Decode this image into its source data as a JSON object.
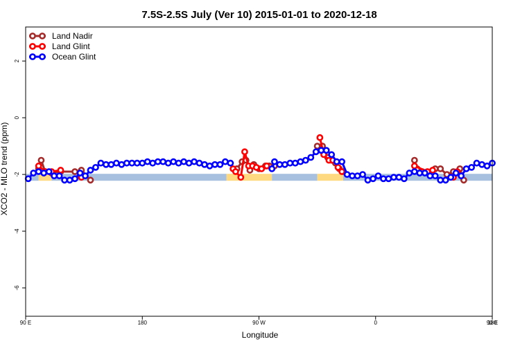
{
  "chart_data": {
    "type": "line",
    "title": "7.5S-2.5S July (Ver 10)   2015-01-01 to 2020-12-18",
    "xlabel": "Longitude",
    "ylabel": "XCO2 - MLO trend (ppm)",
    "xlim": [
      0,
      360
    ],
    "ylim": [
      -7,
      3.2
    ],
    "x_ticks": [
      {
        "value": 0,
        "label": "90 E"
      },
      {
        "value": 90,
        "label": "180"
      },
      {
        "value": 180,
        "label": "90 W"
      },
      {
        "value": 270,
        "label": "0"
      },
      {
        "value": 360,
        "label": "90 E"
      }
    ],
    "x_ticks_right": [
      {
        "value": 360,
        "label": "180"
      }
    ],
    "y_ticks": [
      {
        "value": 2,
        "label": "2"
      },
      {
        "value": 0,
        "label": "0"
      },
      {
        "value": -2,
        "label": "-2"
      },
      {
        "value": -4,
        "label": "-4"
      },
      {
        "value": -6,
        "label": "-6"
      }
    ],
    "legend_position": "top-left",
    "colors": {
      "land_nadir": "#a52a2a",
      "land_glint": "#ff0000",
      "ocean_glint": "#0000ff",
      "ocean_band": "#a8c0e0",
      "land_band": "#ffd980"
    },
    "surface_band": {
      "y_value": -2.1,
      "segments": [
        {
          "type": "ocean",
          "x0": 0,
          "x1": 10
        },
        {
          "type": "land",
          "x0": 10,
          "x1": 20
        },
        {
          "type": "ocean",
          "x0": 20,
          "x1": 155
        },
        {
          "type": "land",
          "x0": 155,
          "x1": 190
        },
        {
          "type": "ocean",
          "x0": 190,
          "x1": 225
        },
        {
          "type": "land",
          "x0": 225,
          "x1": 245
        },
        {
          "type": "ocean",
          "x0": 245,
          "x1": 360
        }
      ]
    },
    "series": [
      {
        "name": "Land Nadir",
        "key": "land_nadir",
        "points": [
          [
            10,
            -1.8
          ],
          [
            12,
            -1.5
          ],
          [
            15,
            -1.9
          ],
          [
            20,
            -1.95
          ],
          [
            27,
            -1.9
          ],
          [
            38,
            -1.9
          ],
          [
            43,
            -1.85
          ],
          [
            50,
            -2.2
          ],
          [
            163,
            -1.8
          ],
          [
            167,
            -1.55
          ],
          [
            170,
            -1.5
          ],
          [
            173,
            -1.85
          ],
          [
            176,
            -1.65
          ],
          [
            180,
            -1.8
          ],
          [
            185,
            -1.7
          ],
          [
            188,
            -1.7
          ],
          [
            192,
            -1.7
          ],
          [
            225,
            -1.0
          ],
          [
            229,
            -1.0
          ],
          [
            233,
            -1.4
          ],
          [
            236,
            -1.5
          ],
          [
            239,
            -1.6
          ],
          [
            242,
            -1.8
          ],
          [
            245,
            -1.9
          ],
          [
            300,
            -1.5
          ],
          [
            302,
            -1.8
          ],
          [
            306,
            -1.9
          ],
          [
            316,
            -1.8
          ],
          [
            320,
            -1.8
          ],
          [
            325,
            -2.0
          ],
          [
            330,
            -1.9
          ],
          [
            335,
            -1.8
          ],
          [
            338,
            -2.2
          ]
        ]
      },
      {
        "name": "Land Glint",
        "key": "land_glint",
        "points": [
          [
            10,
            -1.7
          ],
          [
            15,
            -1.9
          ],
          [
            20,
            -1.9
          ],
          [
            27,
            -1.85
          ],
          [
            43,
            -2.1
          ],
          [
            160,
            -1.8
          ],
          [
            162,
            -1.9
          ],
          [
            166,
            -2.1
          ],
          [
            169,
            -1.2
          ],
          [
            172,
            -1.7
          ],
          [
            175,
            -1.7
          ],
          [
            178,
            -1.75
          ],
          [
            182,
            -1.8
          ],
          [
            186,
            -1.7
          ],
          [
            227,
            -0.7
          ],
          [
            230,
            -1.3
          ],
          [
            234,
            -1.5
          ],
          [
            237,
            -1.5
          ],
          [
            241,
            -1.75
          ],
          [
            244,
            -1.9
          ],
          [
            300,
            -1.7
          ],
          [
            310,
            -1.9
          ],
          [
            314,
            -1.85
          ],
          [
            330,
            -2.1
          ],
          [
            333,
            -1.9
          ]
        ]
      },
      {
        "name": "Ocean Glint",
        "key": "ocean_glint",
        "points": [
          [
            2,
            -2.15
          ],
          [
            6,
            -1.95
          ],
          [
            10,
            -1.9
          ],
          [
            14,
            -1.95
          ],
          [
            18,
            -1.9
          ],
          [
            22,
            -2.05
          ],
          [
            26,
            -2.05
          ],
          [
            30,
            -2.2
          ],
          [
            34,
            -2.2
          ],
          [
            38,
            -2.15
          ],
          [
            42,
            -1.95
          ],
          [
            46,
            -2.05
          ],
          [
            50,
            -1.85
          ],
          [
            54,
            -1.75
          ],
          [
            58,
            -1.6
          ],
          [
            62,
            -1.65
          ],
          [
            66,
            -1.65
          ],
          [
            70,
            -1.6
          ],
          [
            74,
            -1.65
          ],
          [
            78,
            -1.6
          ],
          [
            82,
            -1.6
          ],
          [
            86,
            -1.6
          ],
          [
            90,
            -1.6
          ],
          [
            94,
            -1.55
          ],
          [
            98,
            -1.6
          ],
          [
            102,
            -1.55
          ],
          [
            106,
            -1.55
          ],
          [
            110,
            -1.6
          ],
          [
            114,
            -1.55
          ],
          [
            118,
            -1.6
          ],
          [
            122,
            -1.55
          ],
          [
            126,
            -1.6
          ],
          [
            130,
            -1.55
          ],
          [
            134,
            -1.6
          ],
          [
            138,
            -1.65
          ],
          [
            142,
            -1.7
          ],
          [
            146,
            -1.65
          ],
          [
            150,
            -1.65
          ],
          [
            154,
            -1.55
          ],
          [
            158,
            -1.6
          ],
          [
            190,
            -1.8
          ],
          [
            192,
            -1.55
          ],
          [
            196,
            -1.65
          ],
          [
            200,
            -1.65
          ],
          [
            204,
            -1.6
          ],
          [
            208,
            -1.6
          ],
          [
            212,
            -1.55
          ],
          [
            216,
            -1.5
          ],
          [
            220,
            -1.4
          ],
          [
            224,
            -1.2
          ],
          [
            228,
            -1.15
          ],
          [
            232,
            -1.15
          ],
          [
            236,
            -1.3
          ],
          [
            240,
            -1.55
          ],
          [
            244,
            -1.55
          ],
          [
            248,
            -2.0
          ],
          [
            252,
            -2.05
          ],
          [
            256,
            -2.05
          ],
          [
            260,
            -2.0
          ],
          [
            264,
            -2.2
          ],
          [
            268,
            -2.15
          ],
          [
            272,
            -2.05
          ],
          [
            276,
            -2.15
          ],
          [
            280,
            -2.15
          ],
          [
            284,
            -2.1
          ],
          [
            288,
            -2.1
          ],
          [
            292,
            -2.15
          ],
          [
            296,
            -1.95
          ],
          [
            300,
            -1.9
          ],
          [
            304,
            -1.95
          ],
          [
            308,
            -1.95
          ],
          [
            312,
            -2.05
          ],
          [
            316,
            -2.05
          ],
          [
            320,
            -2.2
          ],
          [
            324,
            -2.2
          ],
          [
            328,
            -2.1
          ],
          [
            332,
            -1.95
          ],
          [
            336,
            -2.05
          ],
          [
            340,
            -1.8
          ],
          [
            344,
            -1.75
          ],
          [
            348,
            -1.6
          ],
          [
            352,
            -1.65
          ],
          [
            356,
            -1.7
          ],
          [
            360,
            -1.6
          ]
        ]
      }
    ]
  }
}
